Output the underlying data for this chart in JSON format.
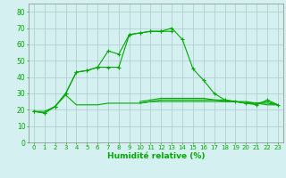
{
  "x_labels": [
    0,
    1,
    2,
    3,
    4,
    5,
    6,
    7,
    8,
    9,
    10,
    11,
    12,
    13,
    14,
    15,
    16,
    17,
    18,
    19,
    20,
    21,
    22,
    23
  ],
  "line1": [
    19,
    18,
    22,
    30,
    43,
    44,
    46,
    56,
    54,
    66,
    67,
    68,
    68,
    70,
    63,
    45,
    38,
    30,
    26,
    25,
    24,
    23,
    26,
    23
  ],
  "line2": [
    19,
    18,
    22,
    30,
    43,
    44,
    46,
    46,
    46,
    66,
    67,
    68,
    68,
    68,
    null,
    null,
    null,
    null,
    null,
    null,
    null,
    null,
    null,
    null
  ],
  "line3": [
    19,
    19,
    22,
    29,
    23,
    23,
    23,
    24,
    24,
    24,
    24,
    25,
    25,
    25,
    25,
    25,
    25,
    25,
    25,
    25,
    25,
    24,
    23,
    23
  ],
  "line4": [
    null,
    null,
    null,
    null,
    null,
    null,
    null,
    null,
    null,
    null,
    24,
    25,
    26,
    26,
    26,
    26,
    26,
    26,
    25,
    25,
    24,
    24,
    24,
    23
  ],
  "line5": [
    null,
    null,
    null,
    null,
    null,
    null,
    null,
    null,
    null,
    null,
    25,
    26,
    27,
    27,
    27,
    27,
    27,
    26,
    26,
    25,
    24,
    24,
    25,
    23
  ],
  "line_color": "#00aa00",
  "bg_color": "#d4f0f0",
  "grid_color": "#aacccc",
  "xlabel": "Humidité relative (%)",
  "ylabel_ticks": [
    0,
    10,
    20,
    30,
    40,
    50,
    60,
    70,
    80
  ],
  "ylim": [
    0,
    85
  ],
  "xlim": [
    -0.5,
    23.5
  ],
  "figsize": [
    3.2,
    2.0
  ],
  "dpi": 100
}
